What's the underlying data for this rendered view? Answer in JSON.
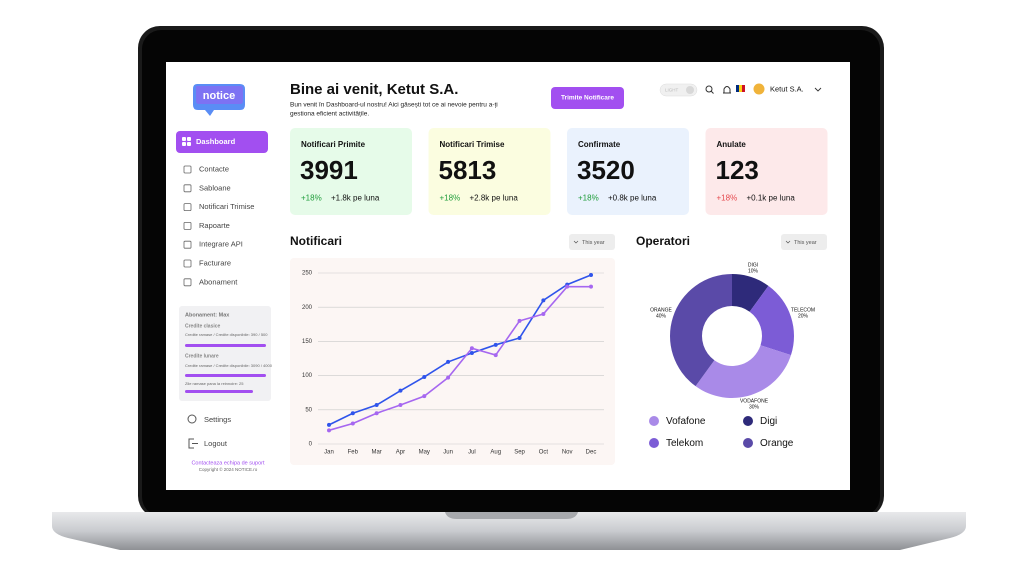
{
  "header": {
    "logo": "notice",
    "title": "Bine ai venit, Ketut S.A.",
    "subtitle": [
      "Bun venit în Dashboard-ul nostru! Aici găsești tot ce ai nevoie pentru a-ți",
      "gestiona eficient activitățile."
    ],
    "button": "Trimite Notificare",
    "theme_toggle": "LIGHT",
    "user": "Ketut S.A."
  },
  "sidebar": {
    "active": "Dashboard",
    "menu": [
      "Contacte",
      "Sabloane",
      "Notificari Trimise",
      "Rapoarte",
      "Integrare API",
      "Facturare",
      "Abonament"
    ],
    "subscription": {
      "title": "Abonament: Max",
      "classic_label": "Credite clasice",
      "classic_detail": "Credite ramase / Credite disponibile: 390 / 500",
      "monthly_label": "Credite lunare",
      "monthly_detail": "Credite ramase / Credite disponibile: 3090 / 4000",
      "renewal": "Zile ramase pana la reinnoire: 25"
    },
    "settings": "Settings",
    "logout": "Logout",
    "support": "Contacteaza echipa de suport",
    "copyright": "Copyright © 2024 NOTICE.ro"
  },
  "cards": [
    {
      "title": "Notificari Primite",
      "value": 3991,
      "change": "+18%",
      "monthly": "+1.8k pe luna"
    },
    {
      "title": "Notificari Trimise",
      "value": 5813,
      "change": "+18%",
      "monthly": "+2.8k pe luna"
    },
    {
      "title": "Confirmate",
      "value": 3520,
      "change": "+18%",
      "monthly": "+0.8k pe luna"
    },
    {
      "title": "Anulate",
      "value": 123,
      "change": "+18%",
      "monthly": "+0.1k pe luna"
    }
  ],
  "filters": {
    "notifications": "This year",
    "operators": "This year"
  },
  "chart_data": [
    {
      "type": "line",
      "title": "Notificari",
      "categories": [
        "Jan",
        "Feb",
        "Mar",
        "Apr",
        "May",
        "Jun",
        "Jul",
        "Aug",
        "Sep",
        "Oct",
        "Nov",
        "Dec"
      ],
      "series": [
        {
          "color": "#2f54eb",
          "values": [
            28,
            45,
            57,
            78,
            98,
            120,
            133,
            145,
            155,
            210,
            233,
            247
          ]
        },
        {
          "color": "#a667f0",
          "values": [
            20,
            30,
            45,
            57,
            70,
            97,
            140,
            130,
            180,
            190,
            230,
            230
          ]
        }
      ],
      "ylim": [
        0,
        250
      ],
      "yticks": [
        0,
        50,
        100,
        150,
        200,
        250
      ],
      "grid": true
    },
    {
      "type": "donut",
      "title": "Operatori",
      "categories": [
        "DIGI",
        "TELECOM",
        "VODAFONE",
        "ORANGE"
      ],
      "values": [
        10,
        20,
        30,
        40
      ],
      "value_labels": [
        "10%",
        "20%",
        "30%",
        "40%"
      ],
      "colors": [
        "#2e2a7a",
        "#7c5cd6",
        "#a98ae8",
        "#5a4aa8"
      ],
      "legend": [
        {
          "label": "Vofafone",
          "color": "#a98ae8"
        },
        {
          "label": "Digi",
          "color": "#2e2a7a"
        },
        {
          "label": "Telekom",
          "color": "#7c5cd6"
        },
        {
          "label": "Orange",
          "color": "#5a4aa8"
        }
      ]
    }
  ]
}
